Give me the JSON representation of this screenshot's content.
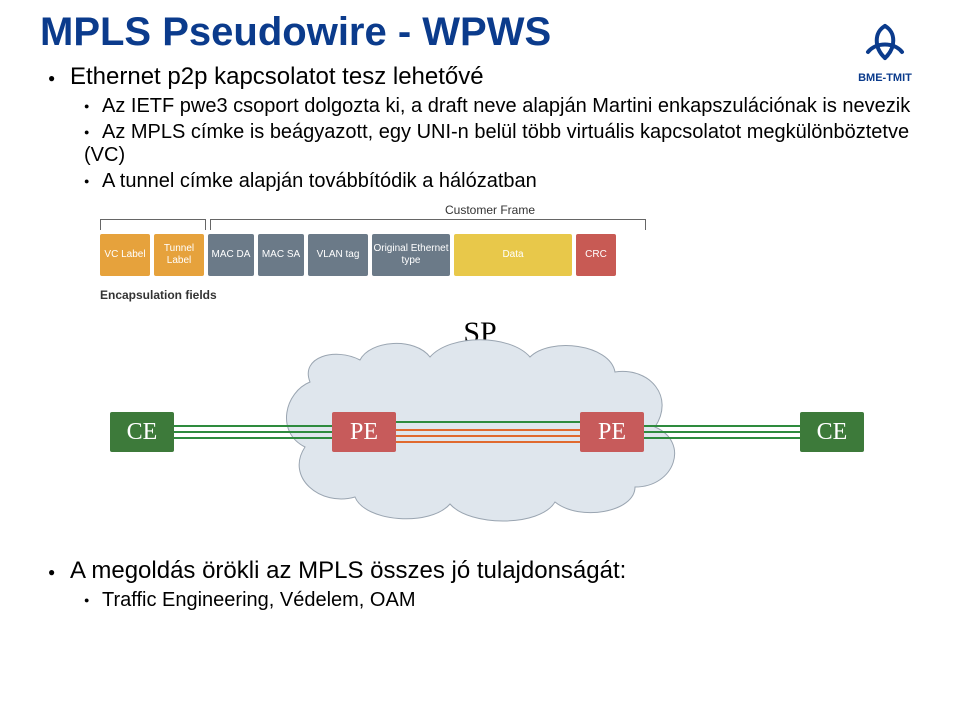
{
  "title": "MPLS Pseudowire - WPWS",
  "logo_caption": "BME-TMIT",
  "colors": {
    "title": "#0b3b8c",
    "bullet": "#000000",
    "frame_orange": "#e6a23c",
    "frame_gray": "#6b7a88",
    "frame_yellow": "#e8c84a",
    "frame_red": "#c85a54",
    "ce_green": "#3d7a3a",
    "pe_red": "#c75b5b",
    "cloud_fill": "#dfe6ed",
    "cloud_stroke": "#9aa5b1",
    "wire_green": "#2e8b3e",
    "wire_orange": "#e06a2f"
  },
  "bullets_top": {
    "b1": "Ethernet p2p kapcsolatot tesz lehetővé",
    "s1": "Az IETF pwe3 csoport dolgozta ki, a draft neve alapján Martini enkapszulációnak is nevezik",
    "s2": "Az MPLS címke is beágyazott, egy UNI-n belül több virtuális kapcsolatot megkülönböztetve (VC)",
    "s3": "A tunnel címke alapján továbbítódik a hálózatban"
  },
  "frame": {
    "customer_label": "Customer Frame",
    "encap_label": "Encapsulation fields",
    "fields": [
      {
        "label": "VC Label",
        "w": 50,
        "color": "#e6a23c"
      },
      {
        "label": "Tunnel Label",
        "w": 50,
        "color": "#e6a23c"
      },
      {
        "label": "MAC DA",
        "w": 46,
        "color": "#6b7a88"
      },
      {
        "label": "MAC SA",
        "w": 46,
        "color": "#6b7a88"
      },
      {
        "label": "VLAN tag",
        "w": 60,
        "color": "#6b7a88"
      },
      {
        "label": "Original Ethernet type",
        "w": 78,
        "color": "#6b7a88"
      },
      {
        "label": "Data",
        "w": 118,
        "color": "#e8c84a"
      },
      {
        "label": "CRC",
        "w": 40,
        "color": "#c85a54"
      }
    ]
  },
  "network": {
    "sp_label": "SP",
    "nodes": {
      "ce_left": "CE",
      "pe_left": "PE",
      "pe_right": "PE",
      "ce_right": "CE"
    }
  },
  "bullets_bottom": {
    "b1": "A megoldás örökli az MPLS összes jó tulajdonságát:",
    "s1": "Traffic Engineering, Védelem, OAM"
  }
}
